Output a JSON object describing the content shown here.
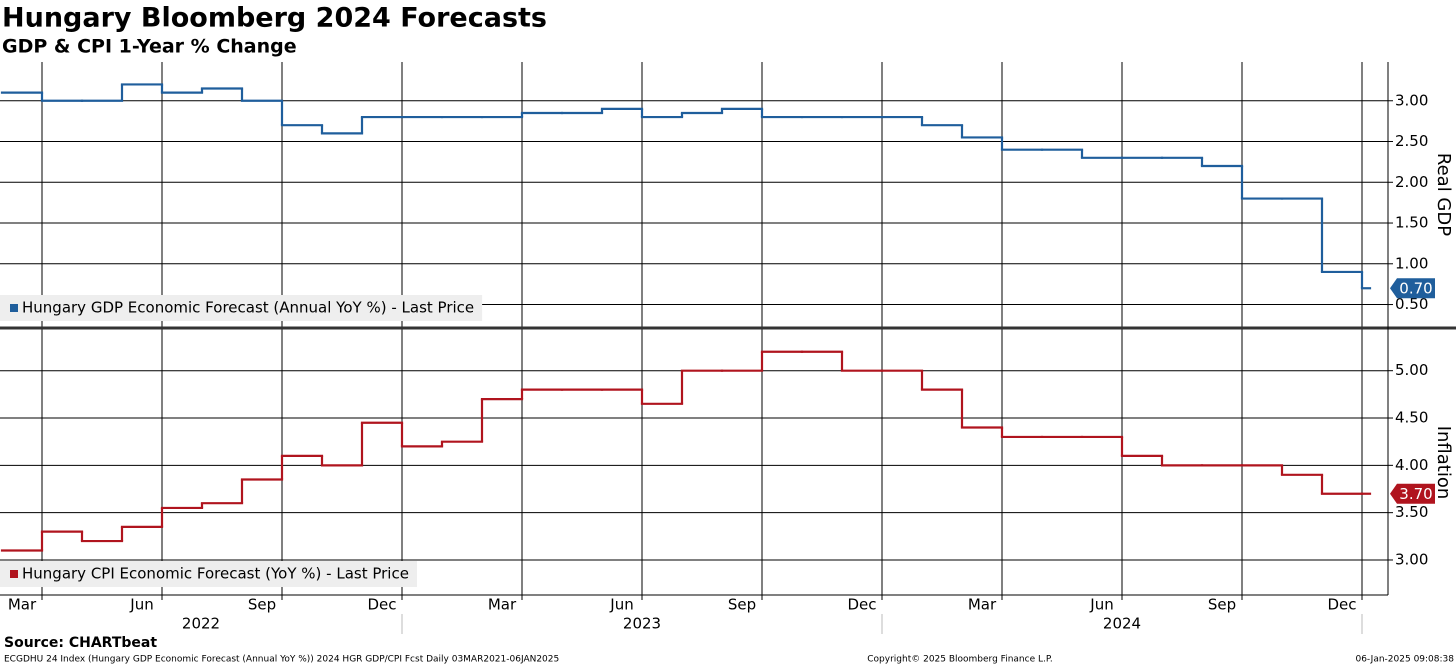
{
  "title": "Hungary Bloomberg 2024 Forecasts",
  "subtitle": "GDP & CPI 1-Year % Change",
  "source": "Source: CHARTbeat",
  "footer": {
    "left": "ECGDHU 24 Index (Hungary GDP Economic Forecast (Annual YoY %)) 2024 HGR GDP/CPI Fcst  Daily 03MAR2021-06JAN2025",
    "center": "Copyright© 2025 Bloomberg Finance L.P.",
    "right": "06-Jan-2025 09:08:38"
  },
  "x_axis": {
    "xlim": [
      "2022-03",
      "2025-01"
    ],
    "xticks": [
      {
        "value": "2022-03",
        "label": "Mar"
      },
      {
        "value": "2022-06",
        "label": "Jun"
      },
      {
        "value": "2022-09",
        "label": "Sep"
      },
      {
        "value": "2022-12",
        "label": "Dec"
      },
      {
        "value": "2023-03",
        "label": "Mar"
      },
      {
        "value": "2023-06",
        "label": "Jun"
      },
      {
        "value": "2023-09",
        "label": "Sep"
      },
      {
        "value": "2023-12",
        "label": "Dec"
      },
      {
        "value": "2024-03",
        "label": "Mar"
      },
      {
        "value": "2024-06",
        "label": "Jun"
      },
      {
        "value": "2024-09",
        "label": "Sep"
      },
      {
        "value": "2024-12",
        "label": "Dec"
      }
    ],
    "years": [
      "2022",
      "2023",
      "2024"
    ]
  },
  "chart_data": [
    {
      "type": "line",
      "step": true,
      "y_label": "Real GDP",
      "grid": true,
      "ylim": [
        0.2,
        3.5
      ],
      "yticks": [
        {
          "value": 0.5,
          "label": "0.50"
        },
        {
          "value": 1.0,
          "label": "1.00"
        },
        {
          "value": 1.5,
          "label": "1.50"
        },
        {
          "value": 2.0,
          "label": "2.00"
        },
        {
          "value": 2.5,
          "label": "2.50"
        },
        {
          "value": 3.0,
          "label": "3.00"
        }
      ],
      "x": [
        "2022-03",
        "2022-04",
        "2022-05",
        "2022-06",
        "2022-07",
        "2022-08",
        "2022-09",
        "2022-10",
        "2022-11",
        "2022-12",
        "2023-01",
        "2023-02",
        "2023-03",
        "2023-04",
        "2023-05",
        "2023-06",
        "2023-07",
        "2023-08",
        "2023-09",
        "2023-10",
        "2023-11",
        "2023-12",
        "2024-01",
        "2024-02",
        "2024-03",
        "2024-04",
        "2024-05",
        "2024-06",
        "2024-07",
        "2024-08",
        "2024-09",
        "2024-10",
        "2024-11",
        "2024-12",
        "2025-01"
      ],
      "series": [
        {
          "name": "Hungary GDP Economic Forecast (Annual YoY %) - Last Price",
          "color": "#1f5e9c",
          "values": [
            3.1,
            3.0,
            3.0,
            3.2,
            3.1,
            3.15,
            3.0,
            2.7,
            2.6,
            2.8,
            2.8,
            2.8,
            2.8,
            2.85,
            2.85,
            2.9,
            2.8,
            2.85,
            2.9,
            2.8,
            2.8,
            2.8,
            2.8,
            2.7,
            2.55,
            2.4,
            2.4,
            2.3,
            2.3,
            2.3,
            2.2,
            1.8,
            1.8,
            0.9,
            0.7
          ],
          "last_value_label": "0.70"
        }
      ]
    },
    {
      "type": "line",
      "step": true,
      "y_label": "Inflation",
      "grid": true,
      "ylim": [
        2.63,
        5.43
      ],
      "yticks": [
        {
          "value": 3.0,
          "label": "3.00"
        },
        {
          "value": 3.5,
          "label": "3.50"
        },
        {
          "value": 4.0,
          "label": "4.00"
        },
        {
          "value": 4.5,
          "label": "4.50"
        },
        {
          "value": 5.0,
          "label": "5.00"
        }
      ],
      "x": [
        "2022-03",
        "2022-04",
        "2022-05",
        "2022-06",
        "2022-07",
        "2022-08",
        "2022-09",
        "2022-10",
        "2022-11",
        "2022-12",
        "2023-01",
        "2023-02",
        "2023-03",
        "2023-04",
        "2023-05",
        "2023-06",
        "2023-07",
        "2023-08",
        "2023-09",
        "2023-10",
        "2023-11",
        "2023-12",
        "2024-01",
        "2024-02",
        "2024-03",
        "2024-04",
        "2024-05",
        "2024-06",
        "2024-07",
        "2024-08",
        "2024-09",
        "2024-10",
        "2024-11",
        "2024-12",
        "2025-01"
      ],
      "series": [
        {
          "name": "Hungary CPI Economic Forecast (YoY %) - Last Price",
          "color": "#b0141e",
          "values": [
            3.1,
            3.3,
            3.2,
            3.35,
            3.55,
            3.6,
            3.85,
            4.1,
            4.0,
            4.45,
            4.2,
            4.25,
            4.7,
            4.8,
            4.8,
            4.8,
            4.65,
            5.0,
            5.0,
            5.2,
            5.2,
            5.0,
            5.0,
            4.8,
            4.4,
            4.3,
            4.3,
            4.3,
            4.1,
            4.0,
            4.0,
            4.0,
            3.9,
            3.7,
            3.7
          ],
          "last_value_label": "3.70"
        }
      ]
    }
  ]
}
